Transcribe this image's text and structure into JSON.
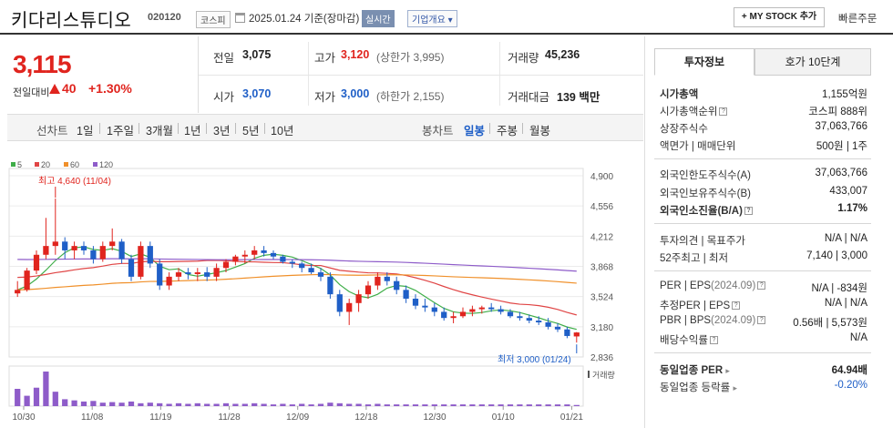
{
  "header": {
    "title": "키다리스튜디오",
    "code": "020120",
    "market": "코스피",
    "date": "2025.01.24 기준(장마감)",
    "live": "실시간",
    "corp_info": "기업개요",
    "corp_info_caret": "▾",
    "mystock": "+ MY STOCK 추가",
    "fast_order": "빠른주문"
  },
  "price": {
    "current": "3,115",
    "change_label": "전일대비",
    "change": "40",
    "change_pct": "+1.30%"
  },
  "quote": {
    "prev_label": "전일",
    "prev": "3,075",
    "high_label": "고가",
    "high": "3,120",
    "upper_limit": "(상한가 3,995)",
    "volume_label": "거래량",
    "volume": "45,236",
    "open_label": "시가",
    "open": "3,070",
    "low_label": "저가",
    "low": "3,000",
    "lower_limit": "(하한가 2,155)",
    "amount_label": "거래대금",
    "amount": "139 백만"
  },
  "period": {
    "label": "선차트",
    "options": [
      "1일",
      "1주일",
      "3개월",
      "1년",
      "3년",
      "5년",
      "10년"
    ],
    "candle_label": "봉차트",
    "candle_options": [
      "일봉",
      "주봉",
      "월봉"
    ],
    "active_candle": "일봉"
  },
  "colors": {
    "up": "#e0241e",
    "down": "#1f5fc7",
    "ma5": "#3fae49",
    "ma20": "#e04545",
    "ma60": "#f0902a",
    "ma120": "#8e5cc9"
  },
  "chart_data": {
    "type": "candlestick",
    "legend": [
      {
        "name": "5",
        "color": "#3fae49"
      },
      {
        "name": "20",
        "color": "#e04545"
      },
      {
        "name": "60",
        "color": "#f0902a"
      },
      {
        "name": "120",
        "color": "#8e5cc9"
      }
    ],
    "y_ticks": [
      "4,900",
      "4,556",
      "4,212",
      "3,868",
      "3,524",
      "3,180",
      "2,836"
    ],
    "ylim": [
      2836,
      4900
    ],
    "x_ticks": [
      "10/30",
      "11/08",
      "11/19",
      "11/28",
      "12/09",
      "12/18",
      "12/30",
      "01/10",
      "01/21"
    ],
    "high_note": "최고 4,640 (11/04)",
    "low_note": "최저 3,000 (01/24)",
    "volume_label": "거래량",
    "candles": [
      [
        3560,
        3700,
        3520,
        3600
      ],
      [
        3600,
        3850,
        3580,
        3820
      ],
      [
        3820,
        4050,
        3780,
        4000
      ],
      [
        4000,
        4420,
        3950,
        4100
      ],
      [
        4100,
        4640,
        4000,
        4150
      ],
      [
        4150,
        4200,
        3950,
        4050
      ],
      [
        4050,
        4150,
        3950,
        4100
      ],
      [
        4100,
        4150,
        4000,
        4050
      ],
      [
        4050,
        4100,
        3900,
        3950
      ],
      [
        3950,
        4150,
        3920,
        4100
      ],
      [
        4100,
        4300,
        4050,
        4150
      ],
      [
        4150,
        4180,
        3900,
        3950
      ],
      [
        3950,
        4000,
        3700,
        3750
      ],
      [
        3750,
        4150,
        3720,
        4100
      ],
      [
        4100,
        4150,
        3850,
        3900
      ],
      [
        3900,
        3950,
        3600,
        3650
      ],
      [
        3650,
        3800,
        3600,
        3750
      ],
      [
        3750,
        3850,
        3700,
        3800
      ],
      [
        3800,
        3850,
        3720,
        3780
      ],
      [
        3780,
        3850,
        3700,
        3800
      ],
      [
        3800,
        3860,
        3700,
        3750
      ],
      [
        3750,
        3900,
        3700,
        3850
      ],
      [
        3850,
        3950,
        3800,
        3920
      ],
      [
        3920,
        4000,
        3880,
        3980
      ],
      [
        3980,
        4050,
        3900,
        4000
      ],
      [
        4000,
        4100,
        3950,
        4050
      ],
      [
        4050,
        4100,
        3980,
        4020
      ],
      [
        4020,
        4050,
        3950,
        3980
      ],
      [
        3980,
        4000,
        3900,
        3920
      ],
      [
        3920,
        3950,
        3850,
        3900
      ],
      [
        3900,
        3920,
        3800,
        3850
      ],
      [
        3850,
        3900,
        3780,
        3800
      ],
      [
        3800,
        3850,
        3700,
        3750
      ],
      [
        3750,
        3800,
        3500,
        3550
      ],
      [
        3550,
        3600,
        3300,
        3350
      ],
      [
        3350,
        3500,
        3200,
        3450
      ],
      [
        3450,
        3600,
        3350,
        3550
      ],
      [
        3550,
        3700,
        3500,
        3650
      ],
      [
        3650,
        3800,
        3600,
        3750
      ],
      [
        3750,
        3800,
        3650,
        3700
      ],
      [
        3700,
        3750,
        3550,
        3600
      ],
      [
        3600,
        3650,
        3450,
        3500
      ],
      [
        3500,
        3550,
        3380,
        3420
      ],
      [
        3420,
        3500,
        3350,
        3400
      ],
      [
        3400,
        3450,
        3300,
        3350
      ],
      [
        3350,
        3400,
        3250,
        3280
      ],
      [
        3280,
        3350,
        3220,
        3300
      ],
      [
        3300,
        3400,
        3280,
        3350
      ],
      [
        3350,
        3420,
        3300,
        3380
      ],
      [
        3380,
        3420,
        3330,
        3400
      ],
      [
        3400,
        3450,
        3350,
        3380
      ],
      [
        3380,
        3420,
        3320,
        3350
      ],
      [
        3350,
        3380,
        3280,
        3300
      ],
      [
        3300,
        3350,
        3250,
        3280
      ],
      [
        3280,
        3320,
        3220,
        3250
      ],
      [
        3250,
        3300,
        3200,
        3230
      ],
      [
        3230,
        3280,
        3150,
        3180
      ],
      [
        3180,
        3220,
        3120,
        3150
      ],
      [
        3150,
        3180,
        3050,
        3075
      ],
      [
        3070,
        3120,
        3000,
        3115
      ]
    ],
    "volumes": [
      30,
      18,
      32,
      60,
      25,
      12,
      10,
      8,
      9,
      6,
      7,
      6,
      8,
      5,
      6,
      5,
      4,
      5,
      4,
      5,
      4,
      4,
      5,
      4,
      4,
      5,
      4,
      3,
      4,
      3,
      4,
      3,
      4,
      6,
      5,
      4,
      4,
      3,
      4,
      3,
      3,
      3,
      3,
      3,
      3,
      3,
      3,
      3,
      3,
      3,
      3,
      3,
      3,
      3,
      3,
      3,
      3,
      3,
      3,
      2
    ]
  },
  "invest": {
    "tabs": [
      "투자정보",
      "호가 10단계"
    ],
    "market_cap": {
      "label": "시가총액",
      "value": "1,155억원"
    },
    "market_cap_rank": {
      "label": "시가총액순위",
      "value": "코스피 888위"
    },
    "shares": {
      "label": "상장주식수",
      "value": "37,063,766"
    },
    "par_unit": {
      "label": "액면가 | 매매단위",
      "value": "500원 | 1주"
    },
    "foreign_limit": {
      "label": "외국인한도주식수(A)",
      "value": "37,063,766"
    },
    "foreign_hold": {
      "label": "외국인보유주식수(B)",
      "value": "433,007"
    },
    "foreign_ratio": {
      "label": "외국인소진율(B/A)",
      "value": "1.17%"
    },
    "opinion": {
      "label": "투자의견 | 목표주가",
      "value": "N/A | N/A"
    },
    "week52": {
      "label": "52주최고 | 최저",
      "value": "7,140 | 3,000"
    },
    "per_eps": {
      "label": "PER | EPS",
      "sub": "(2024.09)",
      "value": "N/A | -834원"
    },
    "est_per": {
      "label": "추정PER | EPS",
      "value": "N/A | N/A"
    },
    "pbr_bps": {
      "label": "PBR | BPS",
      "sub": "(2024.09)",
      "value": "0.56배 | 5,573원"
    },
    "dividend": {
      "label": "배당수익률",
      "value": "N/A"
    },
    "sector_per": {
      "label": "동일업종 PER",
      "value": "64.94배"
    },
    "sector_rate": {
      "label": "동일업종 등락률",
      "value": "-0.20%"
    }
  }
}
